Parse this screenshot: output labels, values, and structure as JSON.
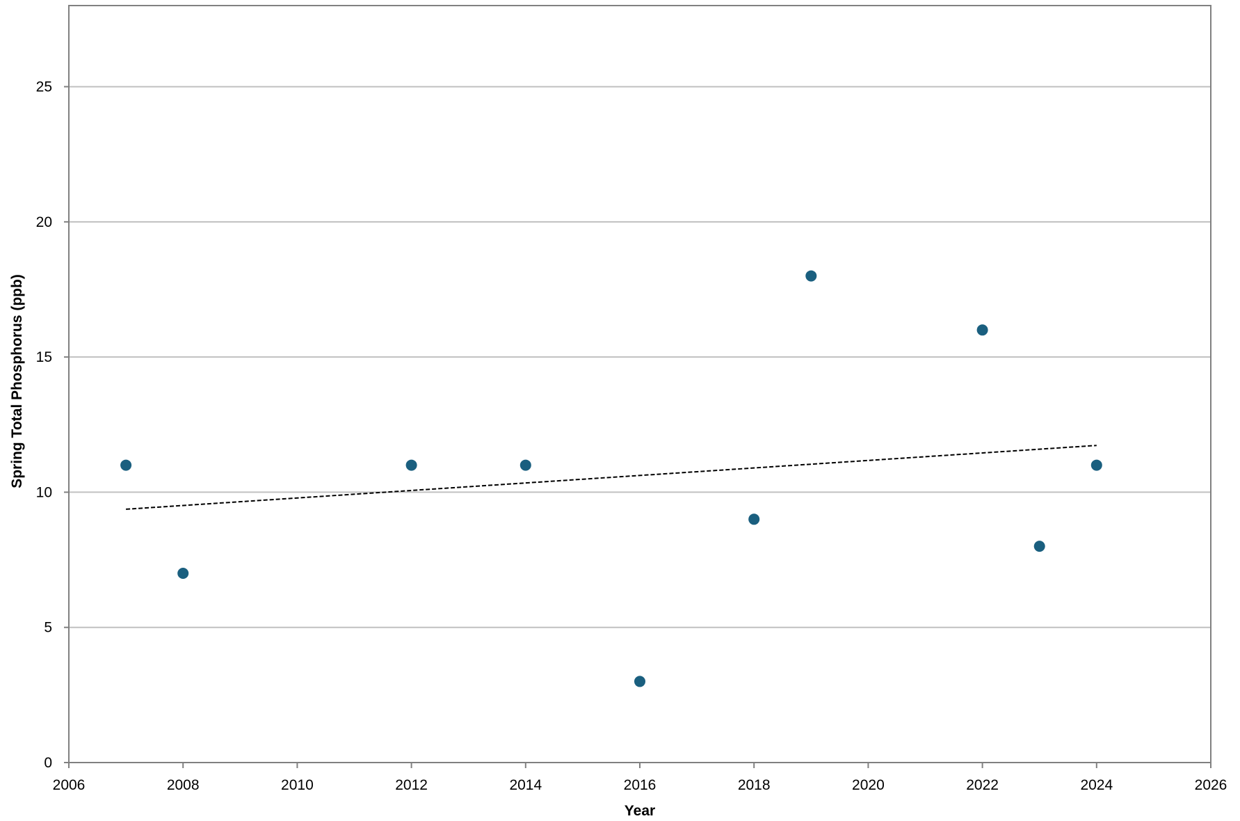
{
  "chart_data": {
    "type": "scatter",
    "title": "",
    "xlabel": "Year",
    "ylabel": "Spring Total Phosphorus (ppb)",
    "xlim": [
      2006,
      2026
    ],
    "ylim": [
      0,
      28
    ],
    "x_ticks": [
      2006,
      2008,
      2010,
      2012,
      2014,
      2016,
      2018,
      2020,
      2022,
      2024,
      2026
    ],
    "y_ticks": [
      0,
      5,
      10,
      15,
      20,
      25
    ],
    "x_tick_labels": [
      "2006",
      "2008",
      "2010",
      "2012",
      "2014",
      "2016",
      "2018",
      "2020",
      "2022",
      "2024",
      "2026"
    ],
    "y_tick_labels": [
      "0",
      "5",
      "10",
      "15",
      "20",
      "25"
    ],
    "grid": "horizontal",
    "legend": "none",
    "series": [
      {
        "type": "scatter",
        "color": "#1a5f7f",
        "points": [
          {
            "x": 2007,
            "y": 11
          },
          {
            "x": 2008,
            "y": 7
          },
          {
            "x": 2012,
            "y": 11
          },
          {
            "x": 2014,
            "y": 11
          },
          {
            "x": 2016,
            "y": 3
          },
          {
            "x": 2018,
            "y": 9
          },
          {
            "x": 2019,
            "y": 18
          },
          {
            "x": 2022,
            "y": 16
          },
          {
            "x": 2023,
            "y": 8
          },
          {
            "x": 2024,
            "y": 11
          }
        ]
      }
    ],
    "trendline": {
      "type": "linear",
      "style": "dashed",
      "color": "#000000",
      "start": {
        "x": 2007,
        "y": 9.37
      },
      "end": {
        "x": 2024,
        "y": 11.73
      }
    }
  }
}
